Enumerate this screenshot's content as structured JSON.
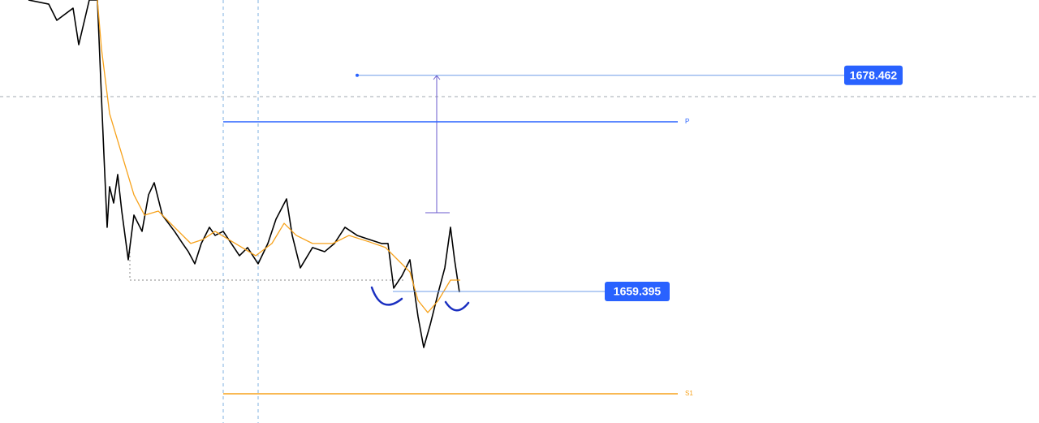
{
  "chart_data": {
    "type": "line",
    "xlim": [
      0,
      1280
    ],
    "ylim": [
      1647.8,
      1685.1
    ],
    "series": [
      {
        "color": "#000000",
        "x": [
          35,
          60,
          70,
          90,
          97,
          110,
          120,
          125,
          128,
          132,
          135,
          140,
          145,
          150,
          158,
          165,
          175,
          183,
          190,
          200,
          215,
          225,
          232,
          240,
          248,
          258,
          265,
          275,
          285,
          295,
          305,
          318,
          330,
          340,
          353,
          360,
          370,
          385,
          400,
          412,
          425,
          440,
          455,
          470,
          478,
          485,
          495,
          505,
          515,
          522,
          530,
          540,
          548,
          555,
          560,
          566
        ],
        "values": [
          1685.1,
          1684.74,
          1683.31,
          1684.38,
          1681.16,
          1685.1,
          1685.1,
          1676.51,
          1671.5,
          1665.06,
          1668.64,
          1667.2,
          1669.71,
          1666.49,
          1662.19,
          1666.13,
          1664.7,
          1667.92,
          1668.99,
          1666.13,
          1664.7,
          1663.63,
          1662.91,
          1661.84,
          1663.63,
          1665.06,
          1664.34,
          1664.7,
          1663.63,
          1662.55,
          1663.27,
          1661.84,
          1663.63,
          1665.77,
          1667.56,
          1664.34,
          1661.48,
          1663.27,
          1662.91,
          1663.63,
          1665.06,
          1664.34,
          1663.98,
          1663.63,
          1663.63,
          1659.69,
          1660.76,
          1662.19,
          1657.18,
          1654.46,
          1656.47,
          1659.33,
          1661.48,
          1665.06,
          1662.19,
          1659.33
        ]
      },
      {
        "color": "#f7a21b",
        "x": [
          120,
          125,
          135,
          150,
          165,
          178,
          195,
          215,
          235,
          250,
          265,
          290,
          315,
          335,
          350,
          365,
          385,
          410,
          430,
          455,
          475,
          490,
          505,
          515,
          527,
          540,
          555,
          567
        ],
        "values": [
          1685.1,
          1680.81,
          1675.08,
          1671.5,
          1667.92,
          1666.13,
          1666.49,
          1665.06,
          1663.63,
          1663.98,
          1664.7,
          1663.63,
          1662.55,
          1663.63,
          1665.41,
          1664.34,
          1663.63,
          1663.63,
          1664.34,
          1663.77,
          1663.27,
          1662.19,
          1661.12,
          1658.61,
          1657.54,
          1658.61,
          1660.4,
          1660.4
        ]
      }
    ],
    "levels": [
      {
        "label": "P",
        "value": 1674.36,
        "color": "#2962ff"
      },
      {
        "label": "S1",
        "value": 1650.38,
        "color": "#f7a21b"
      }
    ],
    "price_labels": [
      1678.462,
      1659.395
    ],
    "label_color": "#2962ff"
  }
}
